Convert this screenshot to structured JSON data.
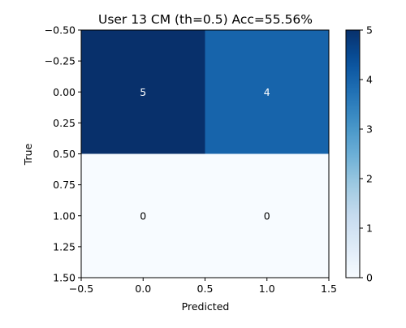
{
  "chart_data": {
    "type": "heatmap",
    "title": "User 13 CM (th=0.5) Acc=55.56%",
    "xlabel": "Predicted",
    "ylabel": "True",
    "x_extent": [
      -0.5,
      1.5
    ],
    "y_extent": [
      -0.5,
      1.5
    ],
    "y_inverted": true,
    "x_ticks": [
      -0.5,
      0.0,
      0.5,
      1.0,
      1.5
    ],
    "x_tick_labels": [
      "−0.5",
      "0.0",
      "0.5",
      "1.0",
      "1.5"
    ],
    "y_ticks": [
      -0.5,
      -0.25,
      0.0,
      0.25,
      0.5,
      0.75,
      1.0,
      1.25,
      1.5
    ],
    "y_tick_labels": [
      "−0.50",
      "−0.25",
      "0.00",
      "0.25",
      "0.50",
      "0.75",
      "1.00",
      "1.25",
      "1.50"
    ],
    "matrix": [
      [
        5,
        4
      ],
      [
        0,
        0
      ]
    ],
    "cell_labels": [
      [
        "5",
        "4"
      ],
      [
        "0",
        "0"
      ]
    ],
    "colormap": "Blues",
    "color_range": [
      0,
      5
    ],
    "colorbar_ticks": [
      0,
      1,
      2,
      3,
      4,
      5
    ],
    "colorbar_tick_labels": [
      "0",
      "1",
      "2",
      "3",
      "4",
      "5"
    ],
    "grid": false
  }
}
